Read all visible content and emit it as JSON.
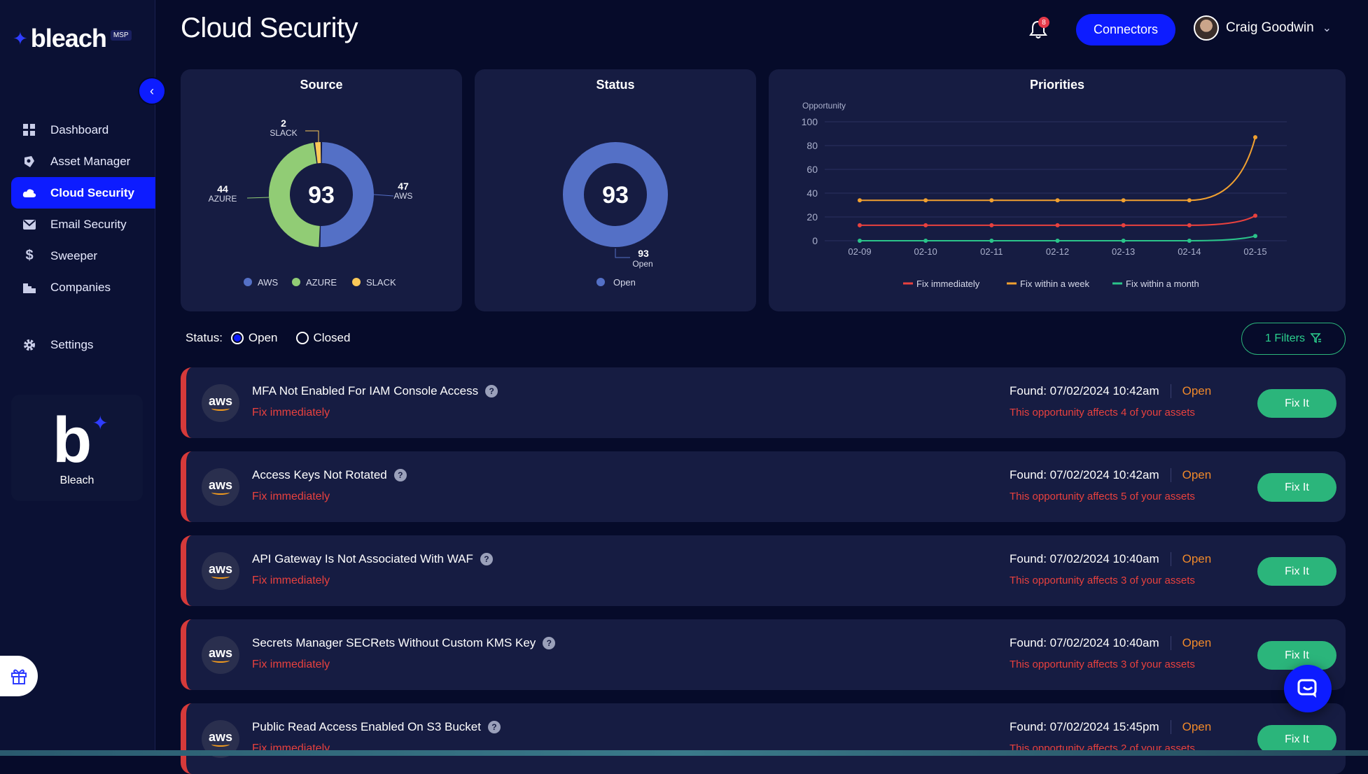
{
  "brand": {
    "name": "bleach",
    "badge": "MSP"
  },
  "sidebar": {
    "items": [
      {
        "label": "Dashboard",
        "icon": "grid-icon"
      },
      {
        "label": "Asset Manager",
        "icon": "asset-icon"
      },
      {
        "label": "Cloud Security",
        "icon": "cloud-icon",
        "active": true
      },
      {
        "label": "Email Security",
        "icon": "mail-icon"
      },
      {
        "label": "Sweeper",
        "icon": "dollar-icon"
      },
      {
        "label": "Companies",
        "icon": "building-icon"
      }
    ],
    "settings_label": "Settings",
    "tenant": {
      "initial": "b",
      "name": "Bleach"
    }
  },
  "header": {
    "title": "Cloud Security",
    "notification_count": "8",
    "connectors_label": "Connectors",
    "user_name": "Craig Goodwin"
  },
  "colors": {
    "accent": "#0d1cff",
    "aws": "#5470c6",
    "azure": "#91cc75",
    "slack": "#fac858",
    "fix_immediately": "#e8413e",
    "fix_week": "#f0a030",
    "fix_month": "#2bc48a"
  },
  "chart_data": [
    {
      "type": "pie",
      "title": "Source",
      "total": "93",
      "slices": [
        {
          "name": "AWS",
          "value": 47
        },
        {
          "name": "AZURE",
          "value": 44
        },
        {
          "name": "SLACK",
          "value": 2
        }
      ],
      "legend": [
        "AWS",
        "AZURE",
        "SLACK"
      ]
    },
    {
      "type": "pie",
      "title": "Status",
      "total": "93",
      "slices": [
        {
          "name": "Open",
          "value": 93
        }
      ],
      "legend": [
        "Open"
      ]
    },
    {
      "type": "line",
      "title": "Priorities",
      "ylabel": "Opportunity",
      "ylim": [
        0,
        100
      ],
      "yticks": [
        "0",
        "20",
        "40",
        "60",
        "80",
        "100"
      ],
      "categories": [
        "02-09",
        "02-10",
        "02-11",
        "02-12",
        "02-13",
        "02-14",
        "02-15"
      ],
      "series": [
        {
          "name": "Fix immediately",
          "values": [
            13,
            13,
            13,
            13,
            13,
            13,
            21
          ]
        },
        {
          "name": "Fix within a week",
          "values": [
            34,
            34,
            34,
            34,
            34,
            34,
            87
          ]
        },
        {
          "name": "Fix within a month",
          "values": [
            0,
            0,
            0,
            0,
            0,
            0,
            4
          ]
        }
      ],
      "grid": true,
      "legend_position": "bottom"
    }
  ],
  "filters": {
    "status_label": "Status:",
    "options": [
      "Open",
      "Closed"
    ],
    "selected": "Open",
    "filters_button": "1 Filters"
  },
  "opportunities": [
    {
      "source": "aws",
      "title": "MFA Not Enabled For IAM Console Access",
      "priority": "Fix immediately",
      "found": "Found: 07/02/2024 10:42am",
      "status": "Open",
      "affects": "This opportunity affects 4 of your assets",
      "action": "Fix It"
    },
    {
      "source": "aws",
      "title": "Access Keys Not Rotated",
      "priority": "Fix immediately",
      "found": "Found: 07/02/2024 10:42am",
      "status": "Open",
      "affects": "This opportunity affects 5 of your assets",
      "action": "Fix It"
    },
    {
      "source": "aws",
      "title": "API Gateway Is Not Associated With WAF",
      "priority": "Fix immediately",
      "found": "Found: 07/02/2024 10:40am",
      "status": "Open",
      "affects": "This opportunity affects 3 of your assets",
      "action": "Fix It"
    },
    {
      "source": "aws",
      "title": "Secrets Manager SECRets Without Custom KMS Key",
      "priority": "Fix immediately",
      "found": "Found: 07/02/2024 10:40am",
      "status": "Open",
      "affects": "This opportunity affects 3 of your assets",
      "action": "Fix It"
    },
    {
      "source": "aws",
      "title": "Public Read Access Enabled On S3 Bucket",
      "priority": "Fix immediately",
      "found": "Found: 07/02/2024 15:45pm",
      "status": "Open",
      "affects": "This opportunity affects 2 of your assets",
      "action": "Fix It"
    }
  ]
}
